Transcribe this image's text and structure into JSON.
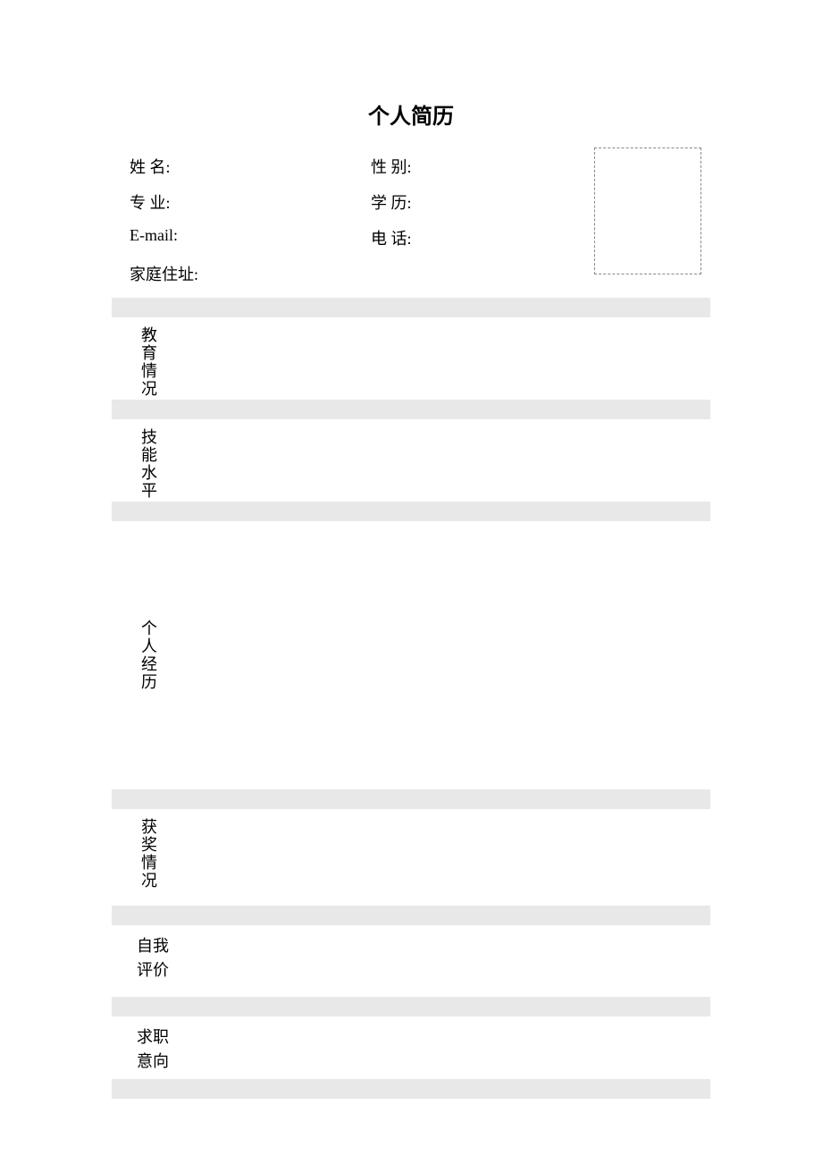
{
  "title": "个人简历",
  "info": {
    "name_label": "姓 名:",
    "gender_label": "性 别:",
    "major_label": "专 业:",
    "education_label": "学 历:",
    "email_label": "E-mail:",
    "phone_label": "电 话:",
    "address_label": "家庭住址:"
  },
  "sections": {
    "education": "教育情况",
    "skill": "技能水平",
    "experience": "个人经历",
    "award": "获奖情况",
    "self_line1": "自我",
    "self_line2": "评价",
    "job_line1": "求职",
    "job_line2": "意向"
  },
  "style": {
    "background_color": "#ffffff",
    "grey_bar_color": "#e8e8e8",
    "photo_border_color": "#888888",
    "text_color": "#000000",
    "title_fontsize": 24,
    "body_fontsize": 18
  }
}
